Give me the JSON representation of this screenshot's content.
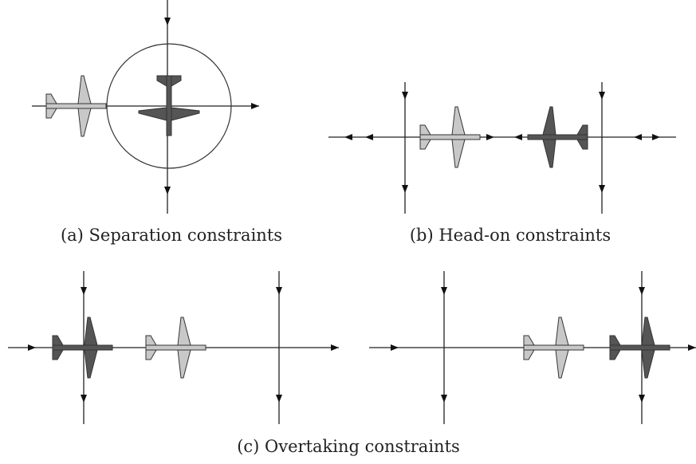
{
  "captions": {
    "a": "(a) Separation constraints",
    "b": "(b) Head-on constraints",
    "c": "(c) Overtaking constraints"
  }
}
